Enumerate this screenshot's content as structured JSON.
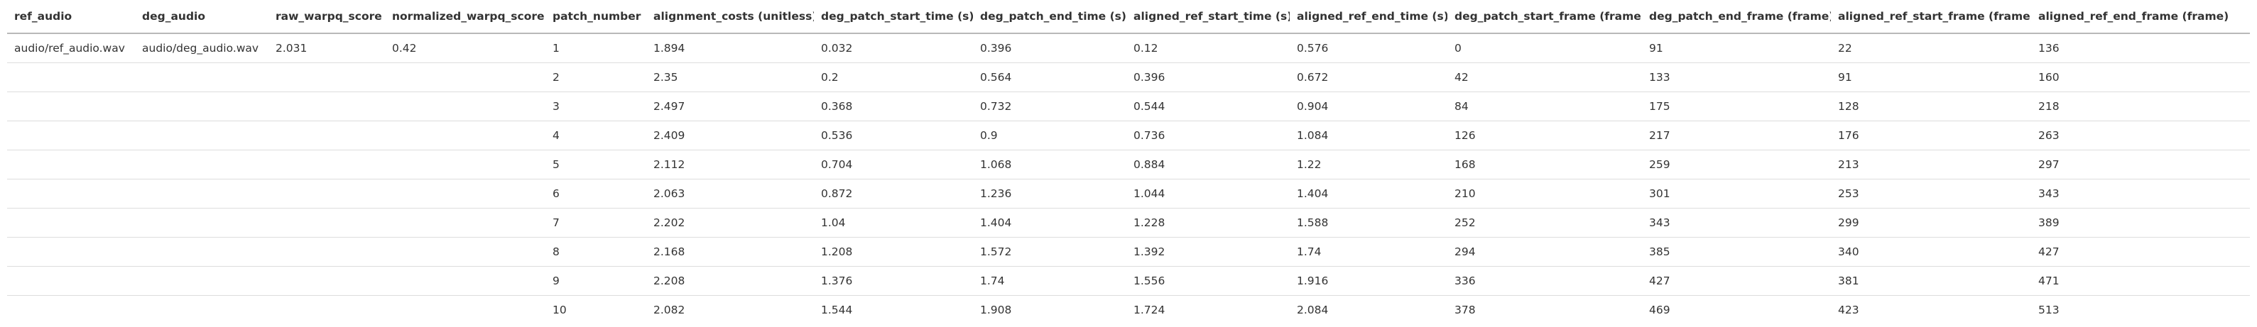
{
  "table": {
    "columns": [
      "ref_audio",
      "deg_audio",
      "raw_warpq_score",
      "normalized_warpq_score",
      "patch_number",
      "alignment_costs (unitless)",
      "deg_patch_start_time (s)",
      "deg_patch_end_time (s)",
      "aligned_ref_start_time (s)",
      "aligned_ref_end_time (s)",
      "deg_patch_start_frame (frame)",
      "deg_patch_end_frame (frame)",
      "aligned_ref_start_frame (frame)",
      "aligned_ref_end_frame (frame)"
    ],
    "rows": [
      [
        "audio/ref_audio.wav",
        "audio/deg_audio.wav",
        "2.031",
        "0.42",
        "1",
        "1.894",
        "0.032",
        "0.396",
        "0.12",
        "0.576",
        "0",
        "91",
        "22",
        "136"
      ],
      [
        "",
        "",
        "",
        "",
        "2",
        "2.35",
        "0.2",
        "0.564",
        "0.396",
        "0.672",
        "42",
        "133",
        "91",
        "160"
      ],
      [
        "",
        "",
        "",
        "",
        "3",
        "2.497",
        "0.368",
        "0.732",
        "0.544",
        "0.904",
        "84",
        "175",
        "128",
        "218"
      ],
      [
        "",
        "",
        "",
        "",
        "4",
        "2.409",
        "0.536",
        "0.9",
        "0.736",
        "1.084",
        "126",
        "217",
        "176",
        "263"
      ],
      [
        "",
        "",
        "",
        "",
        "5",
        "2.112",
        "0.704",
        "1.068",
        "0.884",
        "1.22",
        "168",
        "259",
        "213",
        "297"
      ],
      [
        "",
        "",
        "",
        "",
        "6",
        "2.063",
        "0.872",
        "1.236",
        "1.044",
        "1.404",
        "210",
        "301",
        "253",
        "343"
      ],
      [
        "",
        "",
        "",
        "",
        "7",
        "2.202",
        "1.04",
        "1.404",
        "1.228",
        "1.588",
        "252",
        "343",
        "299",
        "389"
      ],
      [
        "",
        "",
        "",
        "",
        "8",
        "2.168",
        "1.208",
        "1.572",
        "1.392",
        "1.74",
        "294",
        "385",
        "340",
        "427"
      ],
      [
        "",
        "",
        "",
        "",
        "9",
        "2.208",
        "1.376",
        "1.74",
        "1.556",
        "1.916",
        "336",
        "427",
        "381",
        "471"
      ],
      [
        "",
        "",
        "",
        "",
        "10",
        "2.082",
        "1.544",
        "1.908",
        "1.724",
        "2.084",
        "378",
        "469",
        "423",
        "513"
      ]
    ]
  }
}
